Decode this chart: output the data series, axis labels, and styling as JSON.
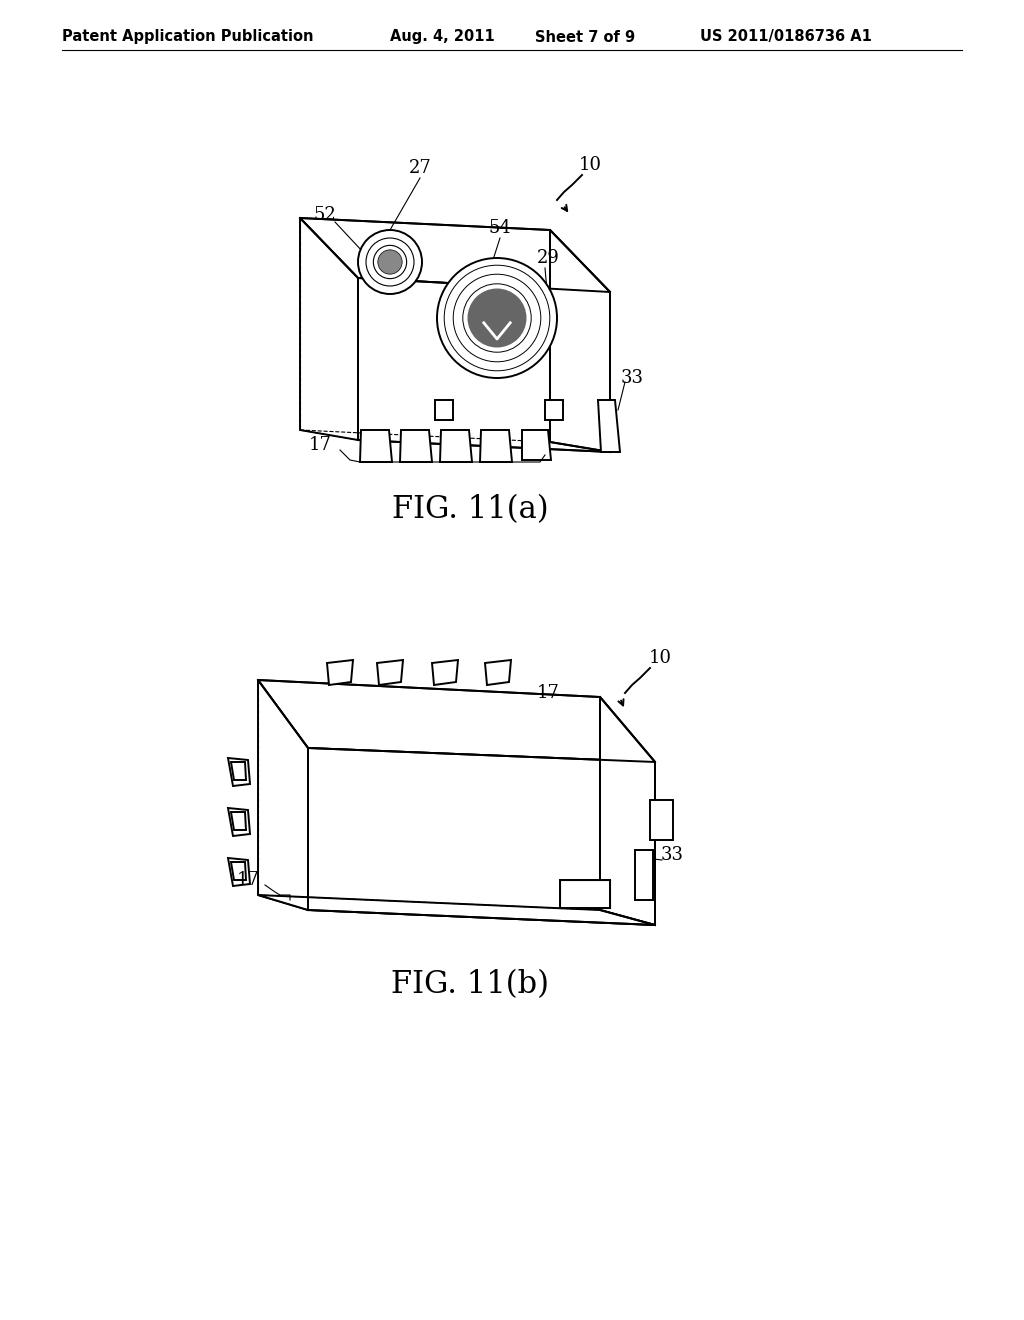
{
  "background_color": "#ffffff",
  "line_color": "#000000",
  "line_width": 1.4,
  "header_left": "Patent Application Publication",
  "header_date": "Aug. 4, 2011",
  "header_sheet": "Sheet 7 of 9",
  "header_patent": "US 2011/0186736 A1",
  "fig_a_caption": "FIG. 11(a)",
  "fig_b_caption": "FIG. 11(b)",
  "caption_fontsize": 22
}
